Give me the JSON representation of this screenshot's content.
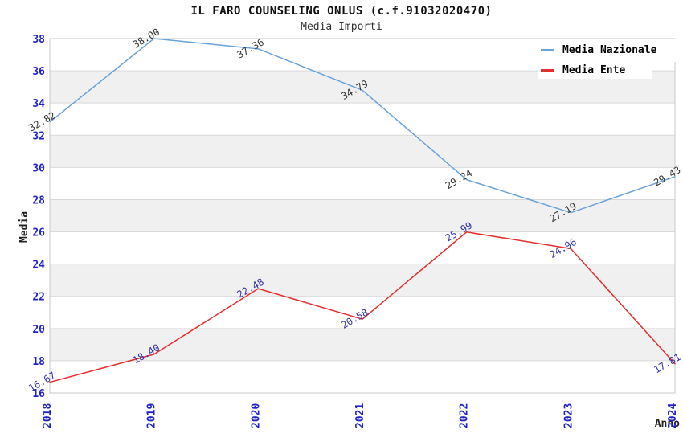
{
  "header": {
    "title": "IL FARO COUNSELING ONLUS (c.f.91032020470)",
    "subtitle": "Media Importi"
  },
  "colors": {
    "band_gray": "#f0f0f0",
    "gridline": "#d9d9d9",
    "plot_border": "#c8c8c8",
    "tick_label_blue": "#2323cc",
    "axis_title": "#222222",
    "title": "#111111",
    "subtitle": "#333333",
    "series_nazionale": "#69a3da",
    "series_ente": "#e62e2e"
  },
  "chart_data": {
    "type": "line",
    "title": "IL FARO COUNSELING ONLUS (c.f.91032020470)",
    "subtitle": "Media Importi",
    "xlabel": "Anno",
    "ylabel": "Media",
    "categories": [
      "2018",
      "2019",
      "2020",
      "2021",
      "2022",
      "2023",
      "2024"
    ],
    "series": [
      {
        "name": "Media Nazionale",
        "color": "#69a3da",
        "label_color": "#333333",
        "values": [
          32.82,
          38.0,
          37.36,
          34.79,
          29.24,
          27.19,
          29.43
        ]
      },
      {
        "name": "Media Ente",
        "color": "#e62e2e",
        "label_color": "#3434aa",
        "values": [
          16.67,
          18.4,
          22.48,
          20.58,
          25.99,
          24.96,
          17.81
        ]
      }
    ],
    "ylim": [
      16,
      38
    ],
    "ytick_step": 2,
    "yticks": [
      16,
      18,
      20,
      22,
      24,
      26,
      28,
      30,
      32,
      34,
      36,
      38
    ],
    "grid": "horizontal-bands-alternating",
    "legend_position": "top-right",
    "point_label_decimals": 2
  }
}
